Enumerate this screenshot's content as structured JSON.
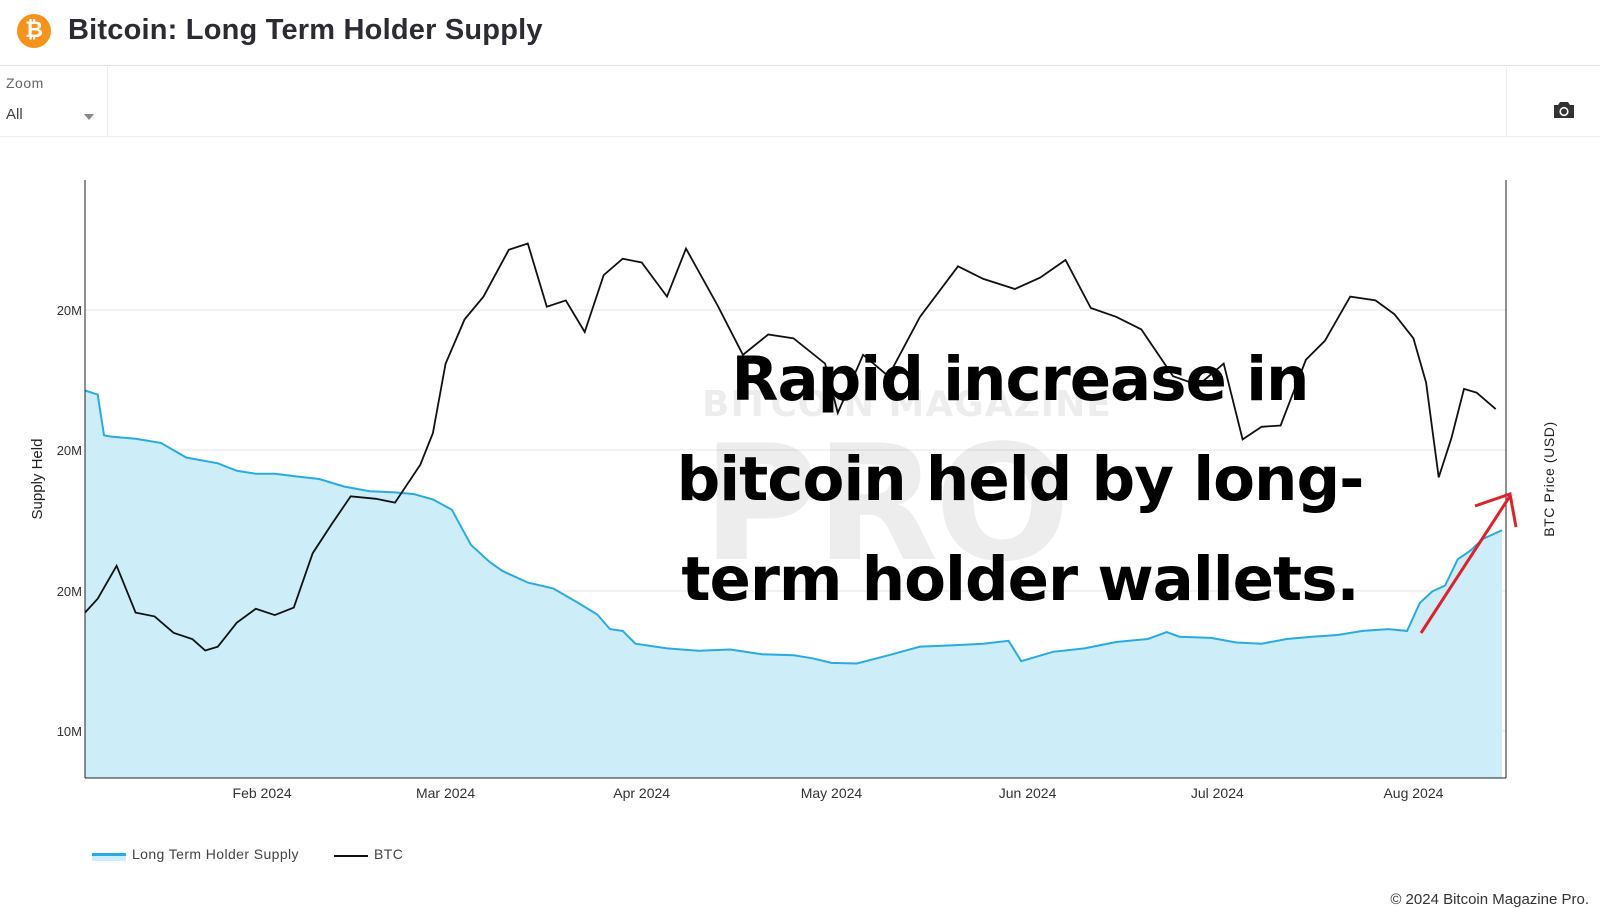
{
  "header": {
    "logo_glyph": "₿",
    "logo_icon": "bitcoin-logo-icon",
    "title": "Bitcoin: Long Term Holder Supply"
  },
  "toolbar": {
    "zoom_label": "Zoom",
    "zoom_value": "All",
    "camera_icon": "camera-icon"
  },
  "colors": {
    "supply_line": "#29abe2",
    "supply_fill": "#cdeef9",
    "btc_line": "#111111",
    "arrow": "#e0202a",
    "logo": "#f7931a"
  },
  "annotation": {
    "lines": [
      "Rapid increase in",
      "bitcoin held by long-",
      "term holder wallets."
    ]
  },
  "watermark": {
    "top": "BITCOIN MAGAZINE",
    "big": "PRO"
  },
  "footer": {
    "copyright": "© 2024 Bitcoin Magazine Pro."
  },
  "chart_data": {
    "type": "area",
    "xlabel": "",
    "ylabel": "Supply Held",
    "y2label": "BTC Price (USD)",
    "x_ticks": [
      "Feb 2024",
      "Mar 2024",
      "Apr 2024",
      "May 2024",
      "Jun 2024",
      "Jul 2024",
      "Aug 2024"
    ],
    "y_ticks": [
      "10M",
      "20M",
      "20M",
      "20M"
    ],
    "grid": true,
    "legend_position": "bottom-left",
    "series": [
      {
        "name": "Long Term Holder Supply",
        "type": "area",
        "x": [
          "2024-01-04",
          "2024-01-06",
          "2024-01-07",
          "2024-01-08",
          "2024-01-12",
          "2024-01-16",
          "2024-01-20",
          "2024-01-25",
          "2024-01-28",
          "2024-01-31",
          "2024-02-03",
          "2024-02-06",
          "2024-02-10",
          "2024-02-14",
          "2024-02-18",
          "2024-02-22",
          "2024-02-25",
          "2024-02-28",
          "2024-03-02",
          "2024-03-05",
          "2024-03-08",
          "2024-03-10",
          "2024-03-12",
          "2024-03-14",
          "2024-03-18",
          "2024-03-22",
          "2024-03-25",
          "2024-03-27",
          "2024-03-29",
          "2024-03-31",
          "2024-04-05",
          "2024-04-10",
          "2024-04-15",
          "2024-04-20",
          "2024-04-25",
          "2024-04-28",
          "2024-05-01",
          "2024-05-05",
          "2024-05-10",
          "2024-05-15",
          "2024-05-20",
          "2024-05-25",
          "2024-05-29",
          "2024-05-31",
          "2024-06-05",
          "2024-06-10",
          "2024-06-15",
          "2024-06-20",
          "2024-06-23",
          "2024-06-25",
          "2024-06-30",
          "2024-07-04",
          "2024-07-08",
          "2024-07-12",
          "2024-07-16",
          "2024-07-20",
          "2024-07-24",
          "2024-07-28",
          "2024-07-31",
          "2024-08-02",
          "2024-08-04",
          "2024-08-06",
          "2024-08-08",
          "2024-08-10",
          "2024-08-12",
          "2024-08-15"
        ],
        "values": [
          15.85,
          15.78,
          15.08,
          15.06,
          15.02,
          14.95,
          14.7,
          14.6,
          14.47,
          14.42,
          14.42,
          14.38,
          14.33,
          14.2,
          14.12,
          14.1,
          14.07,
          13.98,
          13.8,
          13.2,
          12.9,
          12.75,
          12.65,
          12.55,
          12.45,
          12.2,
          12.0,
          11.75,
          11.72,
          11.5,
          11.42,
          11.38,
          11.4,
          11.32,
          11.3,
          11.25,
          11.17,
          11.16,
          11.3,
          11.45,
          11.47,
          11.5,
          11.55,
          11.2,
          11.36,
          11.42,
          11.53,
          11.58,
          11.7,
          11.62,
          11.6,
          11.52,
          11.5,
          11.58,
          11.62,
          11.65,
          11.72,
          11.75,
          11.72,
          12.2,
          12.4,
          12.5,
          12.95,
          13.1,
          13.3,
          13.45
        ]
      },
      {
        "name": "BTC",
        "type": "line",
        "axis": "right",
        "x": [
          "2024-01-04",
          "2024-01-06",
          "2024-01-09",
          "2024-01-12",
          "2024-01-15",
          "2024-01-18",
          "2024-01-21",
          "2024-01-23",
          "2024-01-25",
          "2024-01-28",
          "2024-01-31",
          "2024-02-03",
          "2024-02-06",
          "2024-02-09",
          "2024-02-12",
          "2024-02-15",
          "2024-02-19",
          "2024-02-22",
          "2024-02-26",
          "2024-02-28",
          "2024-03-01",
          "2024-03-04",
          "2024-03-07",
          "2024-03-11",
          "2024-03-14",
          "2024-03-17",
          "2024-03-20",
          "2024-03-23",
          "2024-03-26",
          "2024-03-29",
          "2024-04-01",
          "2024-04-05",
          "2024-04-08",
          "2024-04-13",
          "2024-04-17",
          "2024-04-21",
          "2024-04-25",
          "2024-04-30",
          "2024-05-02",
          "2024-05-06",
          "2024-05-10",
          "2024-05-15",
          "2024-05-21",
          "2024-05-25",
          "2024-05-30",
          "2024-06-03",
          "2024-06-07",
          "2024-06-11",
          "2024-06-15",
          "2024-06-19",
          "2024-06-24",
          "2024-06-28",
          "2024-07-02",
          "2024-07-05",
          "2024-07-08",
          "2024-07-11",
          "2024-07-15",
          "2024-07-18",
          "2024-07-22",
          "2024-07-26",
          "2024-07-29",
          "2024-08-01",
          "2024-08-03",
          "2024-08-05",
          "2024-08-07",
          "2024-08-09",
          "2024-08-11",
          "2024-08-14"
        ],
        "values": [
          42800,
          43900,
          46500,
          42800,
          42500,
          41200,
          40700,
          39800,
          40100,
          42000,
          43100,
          42600,
          43200,
          47500,
          49800,
          52000,
          51800,
          51500,
          54500,
          57000,
          62500,
          66000,
          67800,
          71500,
          72000,
          67000,
          67500,
          65000,
          69500,
          70800,
          70500,
          67800,
          71600,
          67100,
          63200,
          64800,
          64500,
          62500,
          58600,
          63200,
          61500,
          66200,
          70200,
          69200,
          68400,
          69300,
          70700,
          66900,
          66200,
          65200,
          61500,
          60800,
          62500,
          56500,
          57500,
          57600,
          62800,
          64300,
          67800,
          67500,
          66400,
          64500,
          61000,
          53500,
          56600,
          60500,
          60200,
          58900
        ]
      }
    ]
  }
}
